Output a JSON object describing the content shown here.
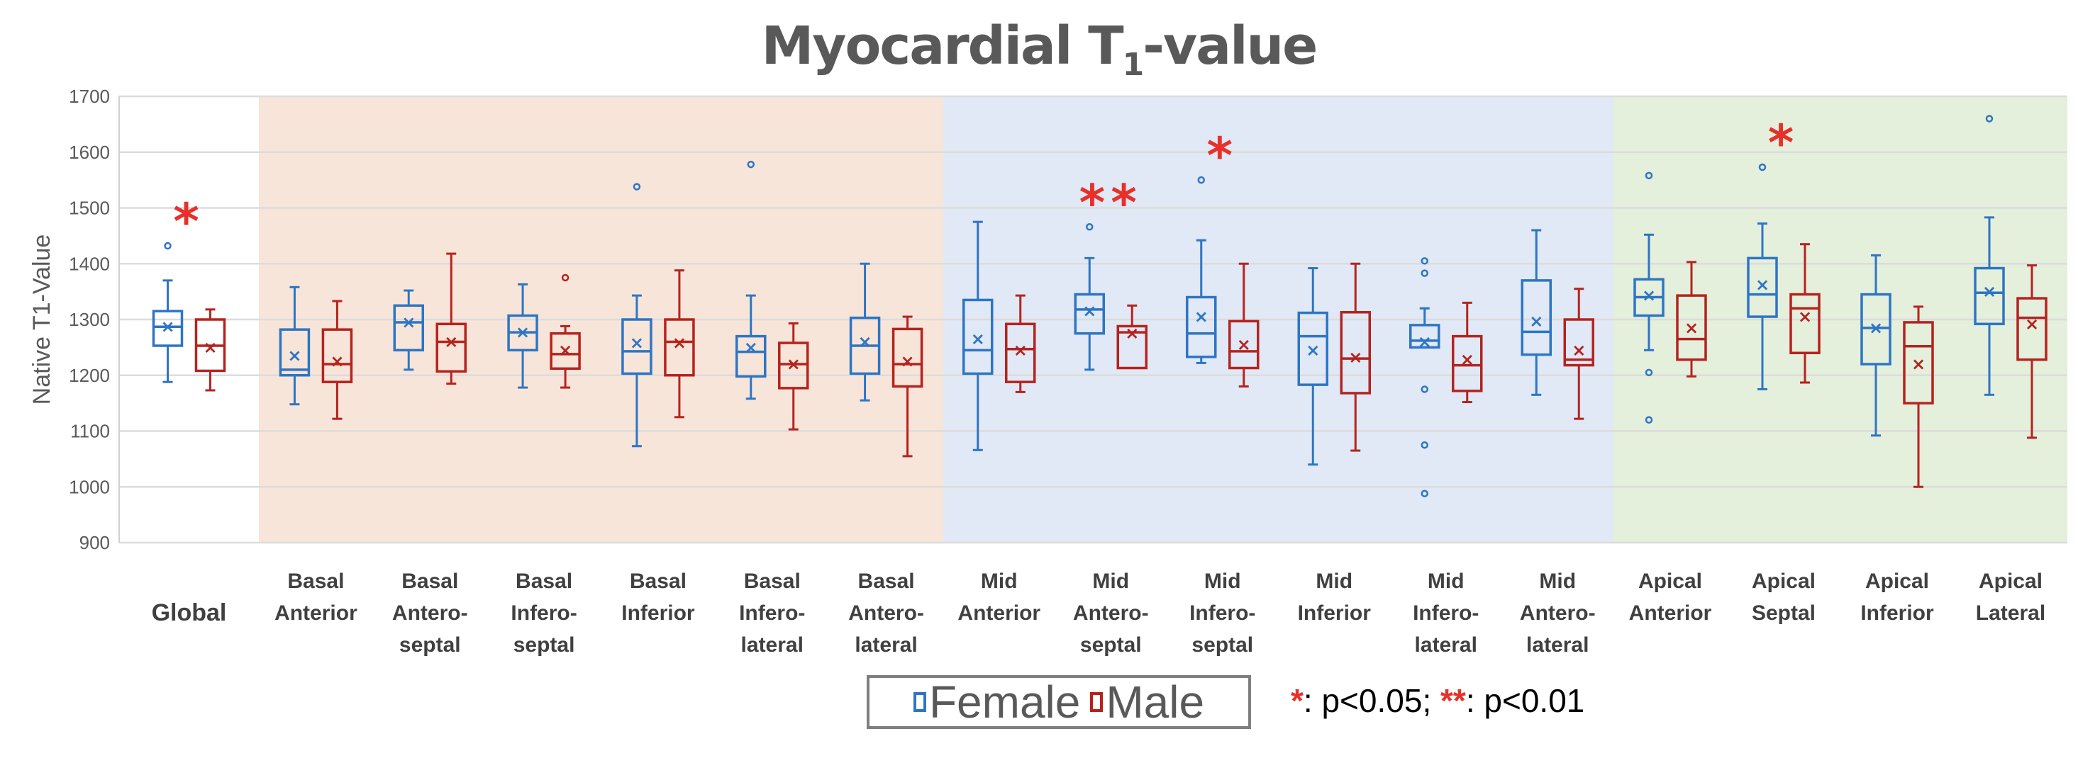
{
  "chart_data": {
    "type": "boxplot",
    "title": "Myocardial T",
    "title_sub": "1",
    "title_suffix": "-value",
    "ylabel": "Native T1-Value",
    "xlabel": "",
    "ylim": [
      900,
      1700
    ],
    "yticks": [
      900,
      1000,
      1100,
      1200,
      1300,
      1400,
      1500,
      1600,
      1700
    ],
    "grid": true,
    "legend": {
      "placement": "bottom-center",
      "entries": [
        {
          "name": "Female",
          "color": "#2e75c4"
        },
        {
          "name": "Male",
          "color": "#b5231f"
        }
      ]
    },
    "significance_note": {
      "single": "*",
      "single_text": ": p<0.05; ",
      "double": "**",
      "double_text": ": p<0.01"
    },
    "regions": [
      {
        "name": "Global",
        "color": "#ffffff",
        "categories": [
          0
        ]
      },
      {
        "name": "Basal",
        "color": "#f8e5d9",
        "categories": [
          1,
          2,
          3,
          4,
          5,
          6
        ]
      },
      {
        "name": "Mid",
        "color": "#e0e9f5",
        "categories": [
          7,
          8,
          9,
          10,
          11,
          12
        ]
      },
      {
        "name": "Apical",
        "color": "#e4efdc",
        "categories": [
          13,
          14,
          15,
          16
        ]
      }
    ],
    "categories": [
      {
        "label": [
          "Global"
        ],
        "sig": "*",
        "female": {
          "min": 1188,
          "q1": 1253,
          "median": 1287,
          "q3": 1315,
          "max": 1370,
          "mean": 1287,
          "outliers": [
            1432
          ]
        },
        "male": {
          "min": 1173,
          "q1": 1208,
          "median": 1253,
          "q3": 1300,
          "max": 1318,
          "mean": 1250,
          "outliers": []
        }
      },
      {
        "label": [
          "Basal",
          "Anterior"
        ],
        "sig": "",
        "female": {
          "min": 1148,
          "q1": 1200,
          "median": 1210,
          "q3": 1282,
          "max": 1358,
          "mean": 1235,
          "outliers": []
        },
        "male": {
          "min": 1122,
          "q1": 1188,
          "median": 1220,
          "q3": 1282,
          "max": 1333,
          "mean": 1225,
          "outliers": []
        }
      },
      {
        "label": [
          "Basal",
          "Antero-",
          "septal"
        ],
        "sig": "",
        "female": {
          "min": 1210,
          "q1": 1245,
          "median": 1295,
          "q3": 1325,
          "max": 1352,
          "mean": 1295,
          "outliers": []
        },
        "male": {
          "min": 1185,
          "q1": 1207,
          "median": 1260,
          "q3": 1292,
          "max": 1418,
          "mean": 1260,
          "outliers": []
        }
      },
      {
        "label": [
          "Basal",
          "Infero-",
          "septal"
        ],
        "sig": "",
        "female": {
          "min": 1178,
          "q1": 1245,
          "median": 1277,
          "q3": 1307,
          "max": 1363,
          "mean": 1277,
          "outliers": []
        },
        "male": {
          "min": 1178,
          "q1": 1212,
          "median": 1238,
          "q3": 1275,
          "max": 1288,
          "mean": 1245,
          "outliers": [
            1375
          ]
        },
        "note": ""
      },
      {
        "label": [
          "Basal",
          "Inferior"
        ],
        "sig": "",
        "female": {
          "min": 1073,
          "q1": 1203,
          "median": 1243,
          "q3": 1300,
          "max": 1343,
          "mean": 1258,
          "outliers": [
            1538
          ]
        },
        "male": {
          "min": 1125,
          "q1": 1200,
          "median": 1260,
          "q3": 1300,
          "max": 1388,
          "mean": 1258,
          "outliers": []
        }
      },
      {
        "label": [
          "Basal",
          "Infero-",
          "lateral"
        ],
        "sig": "",
        "female": {
          "min": 1158,
          "q1": 1198,
          "median": 1242,
          "q3": 1270,
          "max": 1343,
          "mean": 1250,
          "outliers": [
            1578
          ]
        },
        "male": {
          "min": 1103,
          "q1": 1177,
          "median": 1220,
          "q3": 1258,
          "max": 1293,
          "mean": 1220,
          "outliers": []
        }
      },
      {
        "label": [
          "Basal",
          "Antero-",
          "lateral"
        ],
        "sig": "",
        "female": {
          "min": 1155,
          "q1": 1203,
          "median": 1253,
          "q3": 1303,
          "max": 1400,
          "mean": 1260,
          "outliers": []
        },
        "male": {
          "min": 1055,
          "q1": 1180,
          "median": 1220,
          "q3": 1283,
          "max": 1305,
          "mean": 1225,
          "outliers": []
        }
      },
      {
        "label": [
          "Mid",
          "Anterior"
        ],
        "sig": "",
        "female": {
          "min": 1066,
          "q1": 1203,
          "median": 1245,
          "q3": 1335,
          "max": 1475,
          "mean": 1265,
          "outliers": []
        },
        "male": {
          "min": 1170,
          "q1": 1188,
          "median": 1247,
          "q3": 1292,
          "max": 1343,
          "mean": 1245,
          "outliers": []
        }
      },
      {
        "label": [
          "Mid",
          "Antero-",
          "septal"
        ],
        "sig": "**",
        "female": {
          "min": 1210,
          "q1": 1275,
          "median": 1318,
          "q3": 1345,
          "max": 1410,
          "mean": 1315,
          "outliers": [
            1466
          ]
        },
        "male": {
          "min": 1213,
          "q1": 1213,
          "median": 1277,
          "q3": 1288,
          "max": 1325,
          "mean": 1275,
          "outliers": []
        }
      },
      {
        "label": [
          "Mid",
          "Infero-",
          "septal"
        ],
        "sig": "*",
        "female": {
          "min": 1222,
          "q1": 1233,
          "median": 1275,
          "q3": 1340,
          "max": 1442,
          "mean": 1305,
          "outliers": [
            1550
          ]
        },
        "male": {
          "min": 1180,
          "q1": 1213,
          "median": 1243,
          "q3": 1297,
          "max": 1400,
          "mean": 1255,
          "outliers": []
        }
      },
      {
        "label": [
          "Mid",
          "Inferior"
        ],
        "sig": "",
        "female": {
          "min": 1040,
          "q1": 1183,
          "median": 1270,
          "q3": 1312,
          "max": 1392,
          "mean": 1245,
          "outliers": []
        },
        "male": {
          "min": 1065,
          "q1": 1168,
          "median": 1230,
          "q3": 1313,
          "max": 1400,
          "mean": 1232,
          "outliers": []
        }
      },
      {
        "label": [
          "Mid",
          "Infero-",
          "lateral"
        ],
        "sig": "",
        "female": {
          "min": 1250,
          "q1": 1250,
          "median": 1262,
          "q3": 1290,
          "max": 1320,
          "mean": 1260,
          "outliers": [
            1405,
            1383,
            1175,
            1075,
            988
          ]
        },
        "male": {
          "min": 1152,
          "q1": 1172,
          "median": 1218,
          "q3": 1270,
          "max": 1330,
          "mean": 1228,
          "outliers": []
        }
      },
      {
        "label": [
          "Mid",
          "Antero-",
          "lateral"
        ],
        "sig": "",
        "female": {
          "min": 1165,
          "q1": 1237,
          "median": 1278,
          "q3": 1370,
          "max": 1460,
          "mean": 1297,
          "outliers": []
        },
        "male": {
          "min": 1122,
          "q1": 1218,
          "median": 1228,
          "q3": 1300,
          "max": 1355,
          "mean": 1245,
          "outliers": []
        }
      },
      {
        "label": [
          "Apical",
          "Anterior"
        ],
        "sig": "",
        "female": {
          "min": 1245,
          "q1": 1307,
          "median": 1340,
          "q3": 1372,
          "max": 1452,
          "mean": 1343,
          "outliers": [
            1558,
            1205,
            1120
          ]
        },
        "male": {
          "min": 1198,
          "q1": 1228,
          "median": 1265,
          "q3": 1343,
          "max": 1403,
          "mean": 1285,
          "outliers": []
        }
      },
      {
        "label": [
          "Apical",
          "Septal"
        ],
        "sig": "*",
        "female": {
          "min": 1175,
          "q1": 1305,
          "median": 1345,
          "q3": 1410,
          "max": 1472,
          "mean": 1362,
          "outliers": [
            1573
          ]
        },
        "male": {
          "min": 1187,
          "q1": 1240,
          "median": 1320,
          "q3": 1345,
          "max": 1435,
          "mean": 1305,
          "outliers": []
        }
      },
      {
        "label": [
          "Apical",
          "Inferior"
        ],
        "sig": "",
        "female": {
          "min": 1092,
          "q1": 1220,
          "median": 1285,
          "q3": 1345,
          "max": 1415,
          "mean": 1285,
          "outliers": []
        },
        "male": {
          "min": 1000,
          "q1": 1150,
          "median": 1252,
          "q3": 1295,
          "max": 1323,
          "mean": 1220,
          "outliers": []
        }
      },
      {
        "label": [
          "Apical",
          "Lateral"
        ],
        "sig": "",
        "female": {
          "min": 1165,
          "q1": 1292,
          "median": 1348,
          "q3": 1392,
          "max": 1483,
          "mean": 1350,
          "outliers": [
            1660
          ]
        },
        "male": {
          "min": 1088,
          "q1": 1228,
          "median": 1303,
          "q3": 1338,
          "max": 1397,
          "mean": 1292,
          "outliers": []
        }
      }
    ]
  }
}
